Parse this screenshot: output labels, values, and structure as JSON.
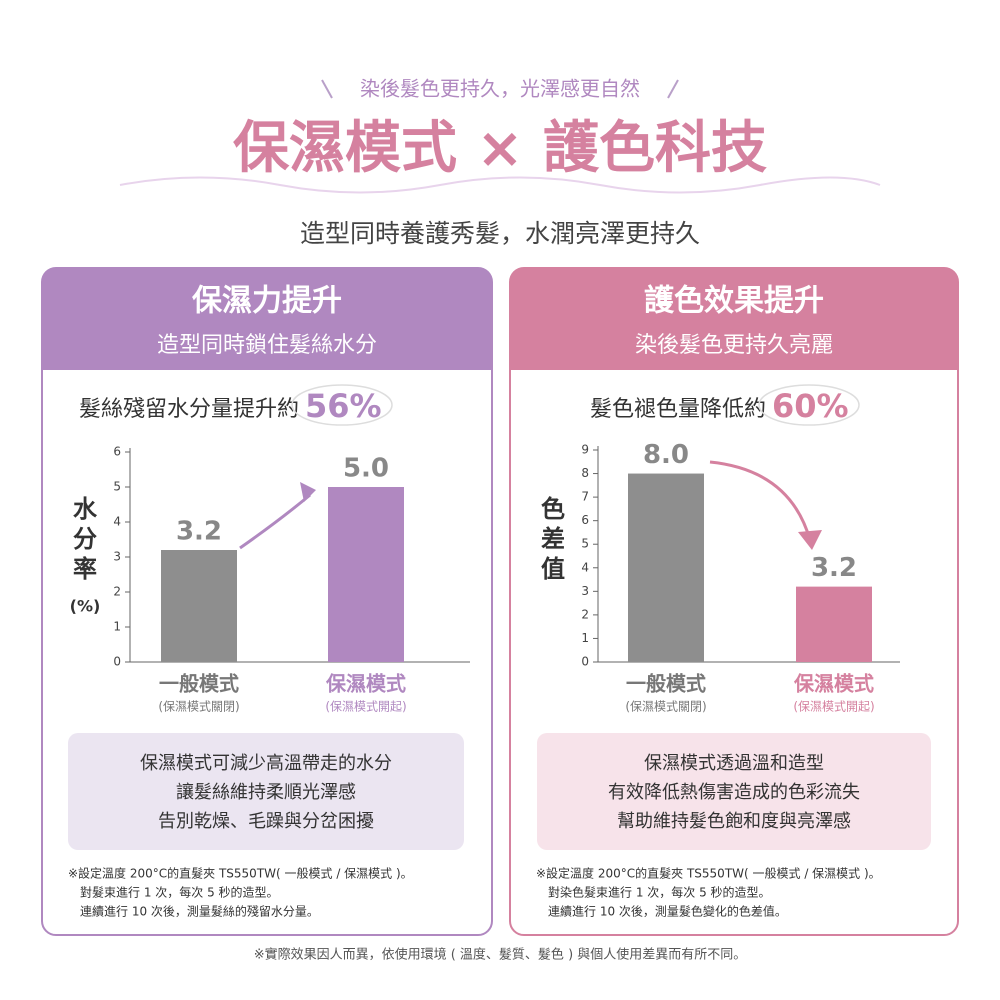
{
  "header": {
    "tagline": "染後髮色更持久，光澤感更自然",
    "title": "保濕模式 × 護色科技",
    "subtitle": "造型同時養護秀髮，水潤亮澤更持久"
  },
  "panels": [
    {
      "title": "保濕力提升",
      "subtitle": "造型同時鎖住髮絲水分",
      "headline": "髮絲殘留水分量提升約",
      "highlight": "56%",
      "note": [
        "保濕模式可減少高溫帶走的水分",
        "讓髮絲維持柔順光澤感",
        "告別乾燥、毛躁與分岔困擾"
      ],
      "footnotes": [
        "※設定溫度 200°C的直髮夾 TS550TW( 一般模式 / 保濕模式 )。",
        "對髮束進行 1 次，每次 5 秒的造型。",
        "連續進行 10 次後，測量髮絲的殘留水分量。"
      ]
    },
    {
      "title": "護色效果提升",
      "subtitle": "染後髮色更持久亮麗",
      "headline": "髮色褪色量降低約",
      "highlight": "60%",
      "note": [
        "保濕模式透過溫和造型",
        "有效降低熱傷害造成的色彩流失",
        "幫助維持髮色飽和度與亮澤感"
      ],
      "footnotes": [
        "※設定溫度 200°C的直髮夾 TS550TW( 一般模式 / 保濕模式 )。",
        "對染色髮束進行 1 次，每次 5 秒的造型。",
        "連續進行 10 次後，測量髮色變化的色差值。"
      ]
    }
  ],
  "chart_data": [
    {
      "type": "bar",
      "y_label": "水分率",
      "y_unit": "(%)",
      "categories": [
        "一般模式",
        "保濕模式"
      ],
      "category_notes": [
        "(保濕模式關閉)",
        "(保濕模式開起)"
      ],
      "values": [
        3.2,
        5.0
      ],
      "value_labels": [
        "3.2",
        "5.0"
      ],
      "colors": [
        "#8e8e8e",
        "#b088c0"
      ],
      "ylim": [
        0,
        6
      ],
      "yticks": [
        0,
        1,
        2,
        3,
        4,
        5,
        6
      ]
    },
    {
      "type": "bar",
      "y_label": "色差值",
      "categories": [
        "一般模式",
        "保濕模式"
      ],
      "category_notes": [
        "(保濕模式關閉)",
        "(保濕模式開起)"
      ],
      "values": [
        8.0,
        3.2
      ],
      "value_labels": [
        "8.0",
        "3.2"
      ],
      "colors": [
        "#8e8e8e",
        "#d5819f"
      ],
      "ylim": [
        0,
        9
      ],
      "yticks": [
        0,
        1,
        2,
        3,
        4,
        5,
        6,
        7,
        8,
        9
      ]
    }
  ],
  "footer": "※實際效果因人而異，依使用環境 ( 溫度、髮質、髮色 ) 與個人使用差異而有所不同。"
}
